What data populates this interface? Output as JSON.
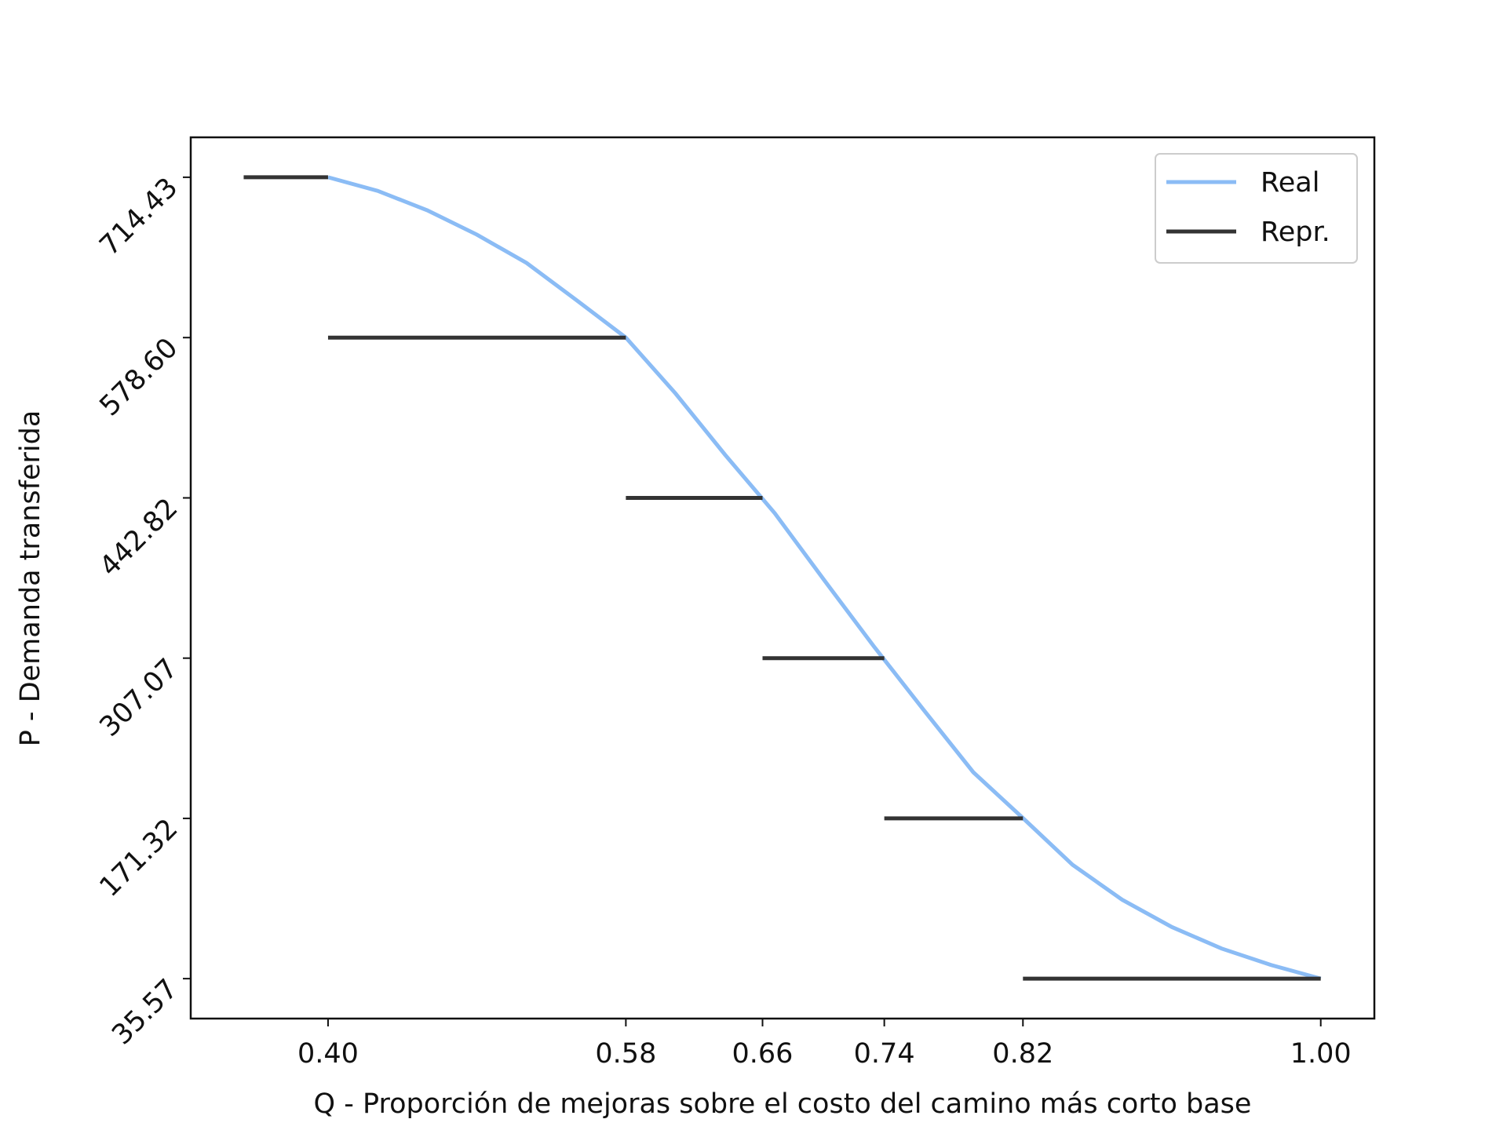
{
  "chart_data": {
    "type": "line",
    "x_label": "Q - Proporción de mejoras sobre el costo del camino más corto base",
    "y_label": "P - Demanda transferida",
    "xlim": [
      0.317,
      1.0324
    ],
    "ylim": [
      1.75,
      748.25
    ],
    "xticks": [
      {
        "value": 0.4,
        "label": "0.40"
      },
      {
        "value": 0.58,
        "label": "0.58"
      },
      {
        "value": 0.6626,
        "label": "0.66"
      },
      {
        "value": 0.7362,
        "label": "0.74"
      },
      {
        "value": 0.82,
        "label": "0.82"
      },
      {
        "value": 1.0,
        "label": "1.00"
      }
    ],
    "yticks": [
      35.57,
      171.32,
      307.07,
      442.82,
      {
        "value": 578.6,
        "label": "578.60"
      },
      714.43
    ],
    "legend": "upper right",
    "series": [
      {
        "name": "Real",
        "color": "#8bbcf5",
        "x": [
          0.4,
          0.43,
          0.46,
          0.49,
          0.52,
          0.55,
          0.58,
          0.61,
          0.64,
          0.67,
          0.7,
          0.73,
          0.76,
          0.79,
          0.82,
          0.85,
          0.88,
          0.91,
          0.94,
          0.97,
          1.0
        ],
        "values": [
          714.43,
          702.9,
          686.4,
          665.8,
          641.8,
          610.5,
          578.6,
          531.3,
          479.3,
          429.8,
          372.9,
          316.8,
          263.2,
          210.4,
          171.6,
          132.0,
          102.4,
          79.3,
          61.1,
          47.1,
          35.57
        ]
      },
      {
        "name": "Repr.",
        "color": "#333333",
        "x": [
          0.349,
          0.4,
          null,
          0.4,
          0.58,
          null,
          0.58,
          0.6626,
          null,
          0.6626,
          0.7362,
          null,
          0.7362,
          0.82,
          null,
          0.82,
          1.0
        ],
        "values": [
          714.43,
          714.43,
          null,
          578.6,
          578.6,
          null,
          442.82,
          442.82,
          null,
          307.07,
          307.07,
          null,
          171.32,
          171.32,
          null,
          35.57,
          35.57
        ]
      }
    ]
  }
}
